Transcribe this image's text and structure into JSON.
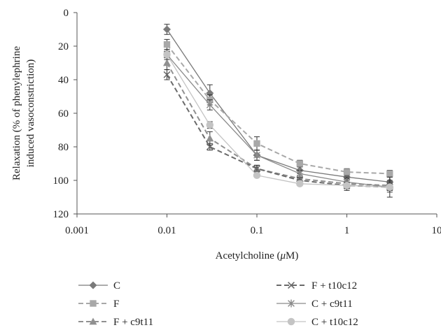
{
  "chart_data": {
    "type": "line",
    "title": "",
    "xlabel_prefix": "Acetylcholine (",
    "xlabel_mu": "μ",
    "xlabel_suffix": "M)",
    "ylabel_line1": "Relaxation (% of phenylephrine",
    "ylabel_line2": "induced vasoconstriction)",
    "xscale": "log",
    "xlim": [
      0.001,
      10
    ],
    "ylim": [
      0,
      120
    ],
    "y_inverted": true,
    "grid": false,
    "legend_position": "bottom",
    "x_ticks": [
      0.001,
      0.01,
      0.1,
      1,
      10
    ],
    "x_tick_labels": [
      "0.001",
      "0.01",
      "0.1",
      "1",
      "10"
    ],
    "y_ticks": [
      0,
      20,
      40,
      60,
      80,
      100,
      120
    ],
    "y_tick_labels": [
      "0",
      "20",
      "40",
      "60",
      "80",
      "100",
      "120"
    ],
    "x": [
      0.01,
      0.03,
      0.1,
      0.3,
      1,
      3
    ],
    "series": [
      {
        "name": "C",
        "values": [
          10,
          48,
          85,
          94,
          98,
          101
        ],
        "errors": [
          3,
          5,
          3,
          2,
          3,
          3
        ],
        "color": "#7a7a7a",
        "dash": false,
        "marker": "diamond"
      },
      {
        "name": "F",
        "values": [
          19,
          52,
          78,
          90,
          95,
          96
        ],
        "errors": [
          3,
          3,
          4,
          2,
          2,
          2
        ],
        "color": "#a8a8a8",
        "dash": true,
        "marker": "square"
      },
      {
        "name": "F + c9t11",
        "values": [
          30,
          75,
          93,
          99,
          102,
          103
        ],
        "errors": [
          4,
          4,
          2,
          2,
          3,
          3
        ],
        "color": "#909090",
        "dash": true,
        "marker": "triangle"
      },
      {
        "name": "F + t10c12",
        "values": [
          37,
          80,
          93,
          100,
          103,
          104
        ],
        "errors": [
          3,
          2,
          2,
          2,
          3,
          3
        ],
        "color": "#6a6a6a",
        "dash": true,
        "marker": "x"
      },
      {
        "name": "C + c9t11",
        "values": [
          25,
          55,
          85,
          96,
          101,
          104
        ],
        "errors": [
          3,
          3,
          3,
          2,
          3,
          6
        ],
        "color": "#8a8a8a",
        "dash": false,
        "marker": "star"
      },
      {
        "name": "C + t10c12",
        "values": [
          25,
          67,
          97,
          102,
          103,
          104
        ],
        "errors": [
          2,
          2,
          1,
          1,
          2,
          2
        ],
        "color": "#c4c4c4",
        "dash": false,
        "marker": "circle"
      }
    ]
  }
}
